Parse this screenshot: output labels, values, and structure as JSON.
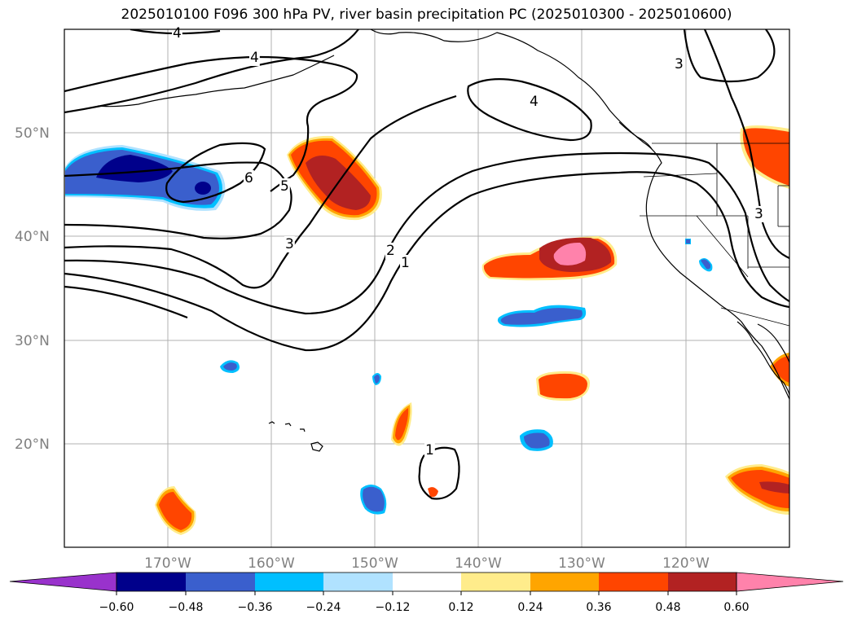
{
  "title": "2025010100 F096 300 hPa PV, river basin precipitation PC (2025010300 - 2025010600)",
  "map": {
    "lat_labels": [
      "50°N",
      "40°N",
      "30°N",
      "20°N"
    ],
    "lon_labels": [
      "170°W",
      "160°W",
      "150°W",
      "140°W",
      "130°W",
      "120°W"
    ],
    "lat_range": [
      10,
      60
    ],
    "lon_range": [
      -180,
      -110
    ],
    "contour_labels": [
      "4",
      "4",
      "4",
      "3",
      "6",
      "5",
      "3",
      "2",
      "1",
      "1",
      "3"
    ],
    "grid": true
  },
  "colorbar": {
    "tick_labels": [
      "−0.60",
      "−0.48",
      "−0.36",
      "−0.24",
      "−0.12",
      "0.12",
      "0.24",
      "0.36",
      "0.48",
      "0.60"
    ],
    "colors": [
      "#9932cc",
      "#00008b",
      "#3a5fcd",
      "#00bfff",
      "#b0e2ff",
      "#ffffff",
      "#ffec8b",
      "#ffa500",
      "#ff4500",
      "#b22222",
      "#ff82ab"
    ],
    "extend": "both"
  },
  "colors": {
    "dark_blue": "#00008b",
    "royal_blue": "#3a5fcd",
    "sky_blue": "#00bfff",
    "light_blue": "#b0e2ff",
    "light_yellow": "#ffec8b",
    "orange": "#ffa500",
    "orange_red": "#ff4500",
    "firebrick": "#b22222",
    "pink": "#ff82ab",
    "grid": "#b0b0b0"
  }
}
